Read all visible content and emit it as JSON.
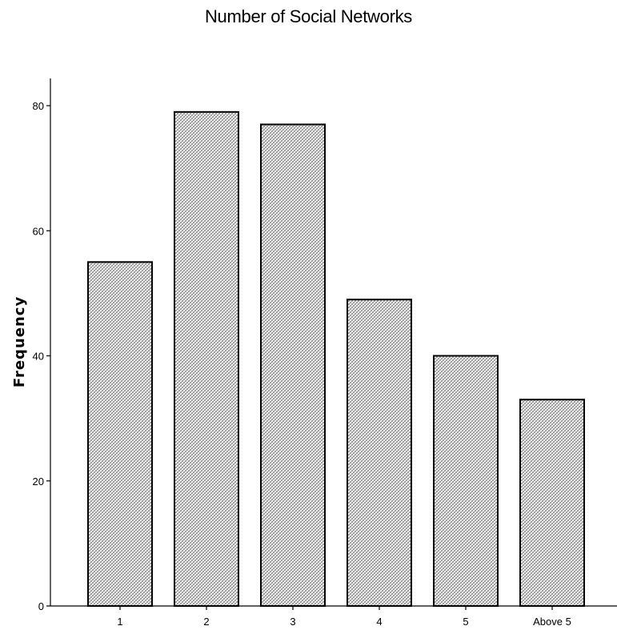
{
  "chart_data": {
    "type": "bar",
    "title": "Number of Social Networks",
    "xlabel": "",
    "ylabel": "Frequency",
    "categories": [
      "1",
      "2",
      "3",
      "4",
      "5",
      "Above 5"
    ],
    "values": [
      55,
      79,
      77,
      49,
      40,
      33
    ],
    "ylim": [
      0,
      80
    ],
    "yticks": [
      0,
      20,
      40,
      60,
      80
    ],
    "grid": false,
    "legend": "none",
    "bar_fill": "#d9d9d9",
    "bar_pattern": "crosshatch",
    "bar_stroke": "#000000"
  }
}
